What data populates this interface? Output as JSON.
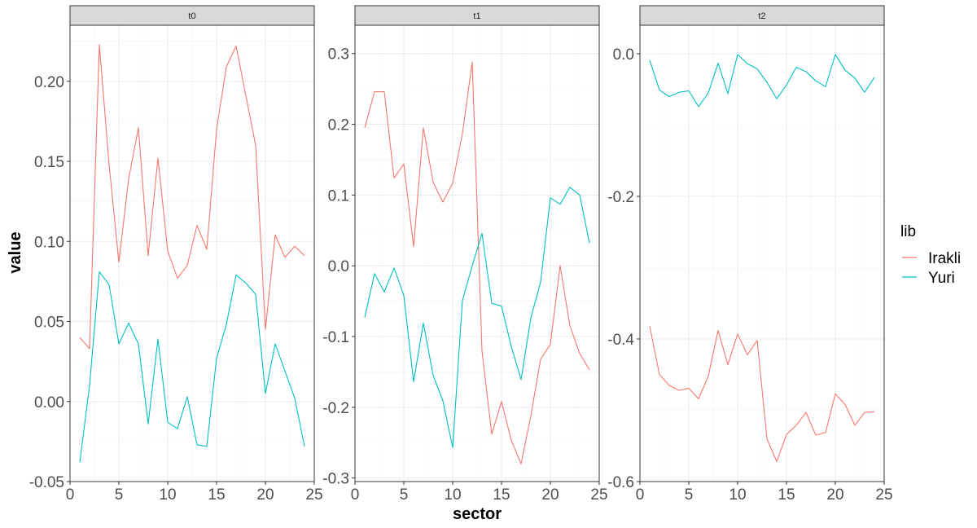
{
  "chart_data": {
    "type": "line",
    "xlabel": "sector",
    "ylabel": "value",
    "legend": {
      "title": "lib",
      "placement": "right",
      "entries": [
        {
          "name": "Irakli",
          "color": "#F8766D"
        },
        {
          "name": "Yuri",
          "color": "#00BFC4"
        }
      ]
    },
    "x": [
      1,
      2,
      3,
      4,
      5,
      6,
      7,
      8,
      9,
      10,
      11,
      12,
      13,
      14,
      15,
      16,
      17,
      18,
      19,
      20,
      21,
      22,
      23,
      24
    ],
    "panels": [
      {
        "label": "t0",
        "xlim": [
          0,
          25
        ],
        "xticks": [
          0,
          5,
          10,
          15,
          20,
          25
        ],
        "xtick_labels": [
          "0",
          "5",
          "10",
          "15",
          "20",
          "25"
        ],
        "ylim": [
          -0.05,
          0.235
        ],
        "yticks": [
          -0.05,
          0,
          0.05,
          0.1,
          0.15,
          0.2
        ],
        "ytick_labels": [
          "-0.05",
          "0.00",
          "0.05",
          "0.10",
          "0.15",
          "0.20"
        ],
        "series": [
          {
            "name": "Irakli",
            "values": [
              0.04,
              0.033,
              0.223,
              0.148,
              0.087,
              0.139,
              0.171,
              0.091,
              0.152,
              0.094,
              0.077,
              0.085,
              0.11,
              0.095,
              0.17,
              0.209,
              0.222,
              0.191,
              0.16,
              0.045,
              0.104,
              0.09,
              0.097,
              0.091
            ]
          },
          {
            "name": "Yuri",
            "values": [
              -0.038,
              0.01,
              0.081,
              0.073,
              0.036,
              0.049,
              0.036,
              -0.014,
              0.039,
              -0.013,
              -0.017,
              0.003,
              -0.027,
              -0.028,
              0.027,
              0.048,
              0.079,
              0.074,
              0.067,
              0.005,
              0.036,
              0.019,
              0.002,
              -0.028
            ]
          }
        ]
      },
      {
        "label": "t1",
        "xlim": [
          0,
          25
        ],
        "xticks": [
          0,
          5,
          10,
          15,
          20,
          25
        ],
        "xtick_labels": [
          "0",
          "5",
          "10",
          "15",
          "20",
          "25"
        ],
        "ylim": [
          -0.305,
          0.34
        ],
        "yticks": [
          -0.3,
          -0.2,
          -0.1,
          0,
          0.1,
          0.2,
          0.3
        ],
        "ytick_labels": [
          "-0.3",
          "-0.2",
          "-0.1",
          "0.0",
          "0.1",
          "0.2",
          "0.3"
        ],
        "series": [
          {
            "name": "Irakli",
            "values": [
              0.195,
              0.246,
              0.246,
              0.124,
              0.144,
              0.027,
              0.195,
              0.118,
              0.09,
              0.117,
              0.187,
              0.288,
              -0.12,
              -0.238,
              -0.192,
              -0.247,
              -0.28,
              -0.212,
              -0.132,
              -0.111,
              0.0,
              -0.085,
              -0.124,
              -0.147
            ]
          },
          {
            "name": "Yuri",
            "values": [
              -0.073,
              -0.011,
              -0.037,
              -0.003,
              -0.042,
              -0.164,
              -0.081,
              -0.155,
              -0.191,
              -0.257,
              -0.049,
              0.0,
              0.046,
              -0.053,
              -0.057,
              -0.114,
              -0.161,
              -0.074,
              -0.023,
              0.096,
              0.087,
              0.111,
              0.1,
              0.032
            ]
          }
        ]
      },
      {
        "label": "t2",
        "xlim": [
          0,
          25
        ],
        "xticks": [
          0,
          5,
          10,
          15,
          20,
          25
        ],
        "xtick_labels": [
          "0",
          "5",
          "10",
          "15",
          "20",
          "25"
        ],
        "ylim": [
          -0.6,
          0.04
        ],
        "yticks": [
          -0.6,
          -0.4,
          -0.2,
          0
        ],
        "ytick_labels": [
          "-0.6",
          "-0.4",
          "-0.2",
          "0.0"
        ],
        "series": [
          {
            "name": "Irakli",
            "values": [
              -0.382,
              -0.45,
              -0.465,
              -0.472,
              -0.469,
              -0.484,
              -0.452,
              -0.388,
              -0.436,
              -0.393,
              -0.422,
              -0.402,
              -0.54,
              -0.572,
              -0.534,
              -0.521,
              -0.503,
              -0.535,
              -0.531,
              -0.477,
              -0.492,
              -0.521,
              -0.503,
              -0.502
            ]
          },
          {
            "name": "Yuri",
            "values": [
              -0.009,
              -0.051,
              -0.06,
              -0.054,
              -0.052,
              -0.074,
              -0.055,
              -0.013,
              -0.056,
              -0.001,
              -0.014,
              -0.021,
              -0.04,
              -0.063,
              -0.044,
              -0.019,
              -0.025,
              -0.038,
              -0.046,
              -0.001,
              -0.023,
              -0.034,
              -0.054,
              -0.033
            ]
          }
        ]
      }
    ]
  }
}
